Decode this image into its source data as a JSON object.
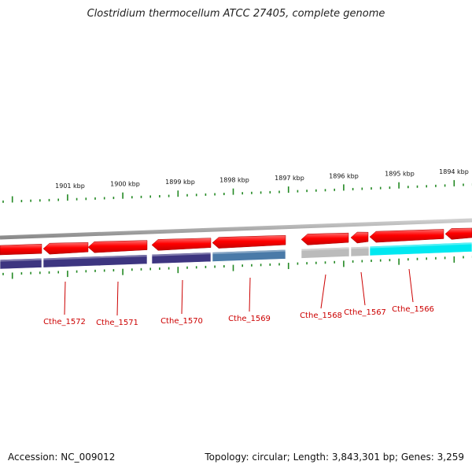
{
  "title": "Clostridium thermocellum ATCC 27405, complete genome",
  "footer": {
    "accession": "Accession: NC_009012",
    "topology": "Topology: circular; Length: 3,843,301 bp; Genes: 3,259"
  },
  "kbp_labels": [
    "1901 kbp",
    "1900 kbp",
    "1899 kbp",
    "1898 kbp",
    "1897 kbp",
    "1896 kbp",
    "1895 kbp",
    "1894 kbp"
  ],
  "gene_labels": [
    "Cthe_1572",
    "Cthe_1571",
    "Cthe_1570",
    "Cthe_1569",
    "Cthe_1568",
    "Cthe_1567",
    "Cthe_1566"
  ],
  "colors": {
    "gene_arrow": "#ee0000",
    "backbone": "#888888",
    "category_dark": "#3d3580",
    "category_steel": "#4a7aa8",
    "category_gray": "#bbbbbb",
    "category_cyan": "#00e8f0",
    "tick": "#228822",
    "label": "#cc0000"
  }
}
